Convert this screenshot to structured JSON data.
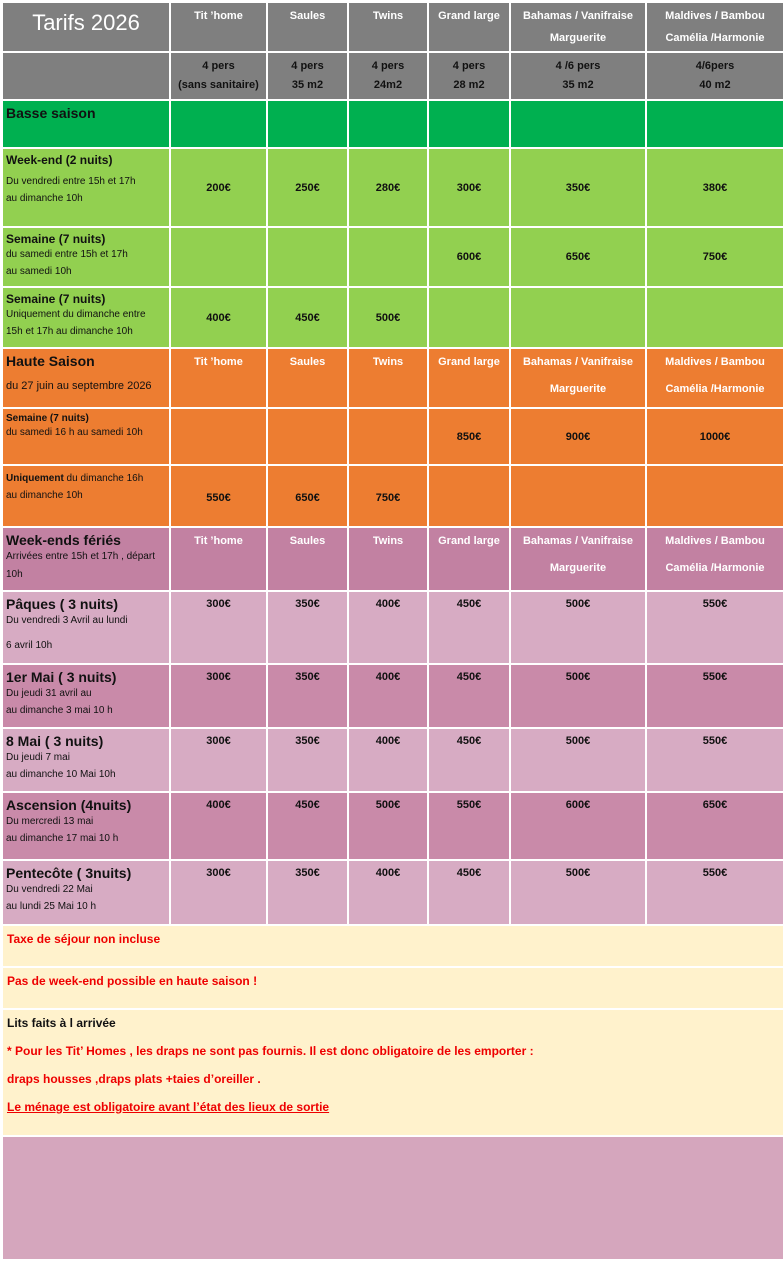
{
  "header": {
    "title": "Tarifs 2026",
    "columns": [
      {
        "line1": "Tit ’home",
        "line2": ""
      },
      {
        "line1": "Saules",
        "line2": ""
      },
      {
        "line1": "Twins",
        "line2": ""
      },
      {
        "line1": "Grand large",
        "line2": ""
      },
      {
        "line1": "Bahamas  / Vanifraise",
        "line2": "Marguerite"
      },
      {
        "line1": "Maldives / Bambou",
        "line2": "Camélia /Harmonie"
      }
    ],
    "capacity": [
      {
        "line1": "4 pers",
        "line2": "(sans sanitaire)"
      },
      {
        "line1": "4 pers",
        "line2": "35 m2"
      },
      {
        "line1": "4 pers",
        "line2": "24m2"
      },
      {
        "line1": "4 pers",
        "line2": "28 m2"
      },
      {
        "line1": "4 /6  pers",
        "line2": "35 m2"
      },
      {
        "line1": "4/6pers",
        "line2": "40 m2"
      }
    ]
  },
  "basse": {
    "label": "Basse saison",
    "rows": [
      {
        "title": "Week-end (2 nuits)",
        "lines": [
          "Du vendredi entre 15h et 17h",
          "au dimanche 10h"
        ],
        "prices": [
          "200€",
          "250€",
          "280€",
          "300€",
          "350€",
          "380€"
        ]
      },
      {
        "title": "Semaine (7 nuits)",
        "lines": [
          "du samedi  entre 15h et 17h",
          "au samedi 10h"
        ],
        "prices": [
          "",
          "",
          "",
          "600€",
          "650€",
          "750€"
        ]
      },
      {
        "title": "Semaine (7 nuits)",
        "lines": [
          "Uniquement du dimanche entre",
          "15h et 17h au dimanche 10h"
        ],
        "prices": [
          "400€",
          "450€",
          "500€",
          "",
          "",
          ""
        ]
      }
    ]
  },
  "haute": {
    "label": "Haute Saison",
    "subtitle": "du 27 juin au septembre 2026",
    "rows": [
      {
        "title": "Semaine (7 nuits)",
        "lines": [
          "du samedi 16 h au samedi 10h"
        ],
        "prices": [
          "",
          "",
          "",
          "850€",
          "900€",
          "1000€"
        ]
      },
      {
        "title": "Uniquement",
        "title_rest": " du dimanche 16h",
        "lines": [
          "au dimanche 10h"
        ],
        "prices": [
          "550€",
          "650€",
          "750€",
          "",
          "",
          ""
        ]
      }
    ]
  },
  "feries": {
    "label": "Week-ends fériés",
    "subtitle": "Arrivées entre 15h et 17h , départ 10h",
    "rows": [
      {
        "title": "Pâques  ( 3 nuits)",
        "lines": [
          "Du vendredi 3 Avril au lundi",
          "6 avril 10h"
        ],
        "prices": [
          "300€",
          "350€",
          "400€",
          "450€",
          "500€",
          "550€"
        ]
      },
      {
        "title": "1er Mai ( 3 nuits)",
        "lines": [
          "Du jeudi 31  avril au",
          "au dimanche 3 mai 10 h"
        ],
        "prices": [
          "300€",
          "350€",
          "400€",
          "450€",
          "500€",
          "550€"
        ]
      },
      {
        "title": "8 Mai ( 3 nuits)",
        "lines": [
          "Du jeudi 7 mai",
          "au dimanche 10 Mai 10h"
        ],
        "prices": [
          "300€",
          "350€",
          "400€",
          "450€",
          "500€",
          "550€"
        ]
      },
      {
        "title": "Ascension (4nuits)",
        "lines": [
          "Du mercredi 13 mai",
          "au dimanche 17 mai 10 h"
        ],
        "prices": [
          "400€",
          "450€",
          "500€",
          "550€",
          "600€",
          "650€"
        ]
      },
      {
        "title": "Pentecôte ( 3nuits)",
        "lines": [
          "Du vendredi 22 Mai",
          "au lundi 25 Mai 10 h"
        ],
        "prices": [
          "300€",
          "350€",
          "400€",
          "450€",
          "500€",
          "550€"
        ]
      }
    ]
  },
  "notes": {
    "tax": "Taxe de séjour non incluse",
    "no_weekend": "Pas de week-end possible en haute saison !",
    "beds": "Lits faits à l arrivée",
    "sheets": "* Pour les Tit’ Homes , les draps ne sont pas fournis. Il est donc obligatoire de  les emporter :",
    "sheets_list": "draps housses ,draps plats +taies d’oreiller .",
    "cleaning": "Le ménage est obligatoire avant l’état des lieux de sortie"
  },
  "colors": {
    "header": "#7f7f7f",
    "basse_title": "#00b050",
    "basse": "#92d050",
    "haute": "#ed7d31",
    "feries_dark": "#c98aa9",
    "feries_light": "#d7abc3",
    "notes": "#fff2cc",
    "warning_text": "#ff0000"
  }
}
